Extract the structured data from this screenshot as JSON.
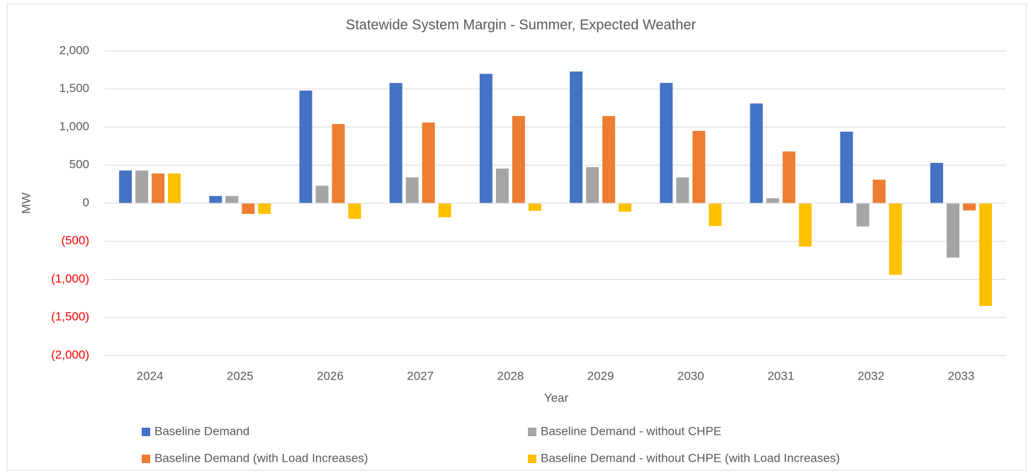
{
  "chart_data": {
    "type": "bar",
    "title": "Statewide System Margin - Summer, Expected Weather",
    "x_label": "Year",
    "y_label": "MW",
    "categories": [
      "2024",
      "2025",
      "2026",
      "2027",
      "2028",
      "2029",
      "2030",
      "2031",
      "2032",
      "2033"
    ],
    "series": [
      {
        "name": "Baseline Demand",
        "color": "#4472c4",
        "values": [
          430,
          95,
          1480,
          1580,
          1700,
          1730,
          1580,
          1310,
          940,
          530
        ]
      },
      {
        "name": "Baseline Demand - without CHPE",
        "color": "#a5a5a5",
        "values": [
          430,
          95,
          230,
          340,
          455,
          475,
          340,
          65,
          -305,
          -715
        ]
      },
      {
        "name": "Baseline Demand (with Load Increases)",
        "color": "#ed7d31",
        "values": [
          390,
          -140,
          1040,
          1060,
          1145,
          1145,
          950,
          680,
          310,
          -95
        ]
      },
      {
        "name": "Baseline Demand - without CHPE (with Load Increases)",
        "color": "#ffc000",
        "values": [
          390,
          -140,
          -205,
          -185,
          -100,
          -110,
          -300,
          -570,
          -940,
          -1350
        ]
      }
    ],
    "ylim": [
      -2000,
      2000
    ],
    "yticks": [
      {
        "value": 2000,
        "label": "2,000"
      },
      {
        "value": 1500,
        "label": "1,500"
      },
      {
        "value": 1000,
        "label": "1,000"
      },
      500,
      0,
      {
        "value": -500,
        "label": "(500)"
      },
      {
        "value": -1000,
        "label": "(1,000)"
      },
      {
        "value": -1500,
        "label": "(1,500)"
      },
      {
        "value": -2000,
        "label": "(2,000)"
      }
    ],
    "grid": true,
    "negative_tick_color": "#ff0000",
    "legend": "bottom"
  }
}
